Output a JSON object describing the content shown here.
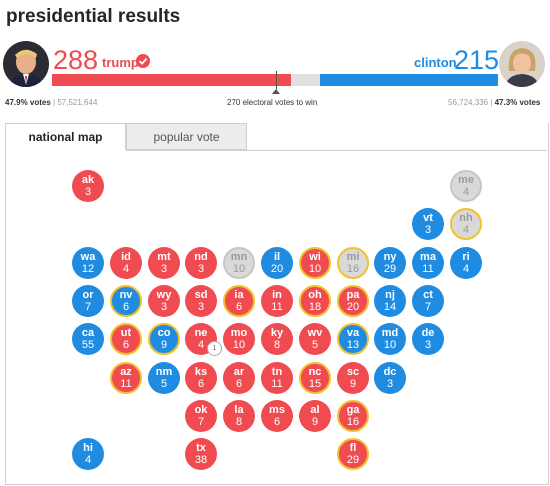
{
  "page": {
    "title": "presidential results"
  },
  "colors": {
    "republican": "#ef4b50",
    "democrat": "#1f8ce2",
    "undecided": "#d9d9d9",
    "flip_ring": "#f2c12a"
  },
  "trump": {
    "ev": "288",
    "name": "trump",
    "vote_pct": "47.9% votes",
    "votes": "57,521,644",
    "bar_fraction": 0.535
  },
  "clinton": {
    "ev": "215",
    "name": "clinton",
    "vote_pct": "47.3% votes",
    "votes": "56,724,336",
    "bar_fraction": 0.4
  },
  "threshold": {
    "label": "270 electoral votes to win"
  },
  "tabs": {
    "national": "national map",
    "popular": "popular vote"
  },
  "split_badge": "1",
  "states": [
    {
      "abbr": "ak",
      "ev": "3",
      "party": "r",
      "flip": false
    },
    {
      "abbr": "me",
      "ev": "4",
      "party": "u",
      "flip": false
    },
    {
      "abbr": "vt",
      "ev": "3",
      "party": "d",
      "flip": false
    },
    {
      "abbr": "nh",
      "ev": "4",
      "party": "u",
      "flip": true
    },
    {
      "abbr": "wa",
      "ev": "12",
      "party": "d",
      "flip": false
    },
    {
      "abbr": "id",
      "ev": "4",
      "party": "r",
      "flip": false
    },
    {
      "abbr": "mt",
      "ev": "3",
      "party": "r",
      "flip": false
    },
    {
      "abbr": "nd",
      "ev": "3",
      "party": "r",
      "flip": false
    },
    {
      "abbr": "mn",
      "ev": "10",
      "party": "u",
      "flip": false
    },
    {
      "abbr": "il",
      "ev": "20",
      "party": "d",
      "flip": false
    },
    {
      "abbr": "wi",
      "ev": "10",
      "party": "r",
      "flip": true
    },
    {
      "abbr": "mi",
      "ev": "16",
      "party": "u",
      "flip": true
    },
    {
      "abbr": "ny",
      "ev": "29",
      "party": "d",
      "flip": false
    },
    {
      "abbr": "ma",
      "ev": "11",
      "party": "d",
      "flip": false
    },
    {
      "abbr": "ri",
      "ev": "4",
      "party": "d",
      "flip": false
    },
    {
      "abbr": "or",
      "ev": "7",
      "party": "d",
      "flip": false
    },
    {
      "abbr": "nv",
      "ev": "6",
      "party": "d",
      "flip": true
    },
    {
      "abbr": "wy",
      "ev": "3",
      "party": "r",
      "flip": false
    },
    {
      "abbr": "sd",
      "ev": "3",
      "party": "r",
      "flip": false
    },
    {
      "abbr": "ia",
      "ev": "6",
      "party": "r",
      "flip": true
    },
    {
      "abbr": "in",
      "ev": "11",
      "party": "r",
      "flip": false
    },
    {
      "abbr": "oh",
      "ev": "18",
      "party": "r",
      "flip": true
    },
    {
      "abbr": "pa",
      "ev": "20",
      "party": "r",
      "flip": true
    },
    {
      "abbr": "nj",
      "ev": "14",
      "party": "d",
      "flip": false
    },
    {
      "abbr": "ct",
      "ev": "7",
      "party": "d",
      "flip": false
    },
    {
      "abbr": "ca",
      "ev": "55",
      "party": "d",
      "flip": false
    },
    {
      "abbr": "ut",
      "ev": "6",
      "party": "r",
      "flip": true
    },
    {
      "abbr": "co",
      "ev": "9",
      "party": "d",
      "flip": true
    },
    {
      "abbr": "ne",
      "ev": "4",
      "party": "r",
      "flip": false
    },
    {
      "abbr": "mo",
      "ev": "10",
      "party": "r",
      "flip": false
    },
    {
      "abbr": "ky",
      "ev": "8",
      "party": "r",
      "flip": false
    },
    {
      "abbr": "wv",
      "ev": "5",
      "party": "r",
      "flip": false
    },
    {
      "abbr": "va",
      "ev": "13",
      "party": "d",
      "flip": true
    },
    {
      "abbr": "md",
      "ev": "10",
      "party": "d",
      "flip": false
    },
    {
      "abbr": "de",
      "ev": "3",
      "party": "d",
      "flip": false
    },
    {
      "abbr": "az",
      "ev": "11",
      "party": "r",
      "flip": true
    },
    {
      "abbr": "nm",
      "ev": "5",
      "party": "d",
      "flip": false
    },
    {
      "abbr": "ks",
      "ev": "6",
      "party": "r",
      "flip": false
    },
    {
      "abbr": "ar",
      "ev": "6",
      "party": "r",
      "flip": false
    },
    {
      "abbr": "tn",
      "ev": "11",
      "party": "r",
      "flip": false
    },
    {
      "abbr": "nc",
      "ev": "15",
      "party": "r",
      "flip": true
    },
    {
      "abbr": "sc",
      "ev": "9",
      "party": "r",
      "flip": false
    },
    {
      "abbr": "dc",
      "ev": "3",
      "party": "d",
      "flip": false
    },
    {
      "abbr": "ok",
      "ev": "7",
      "party": "r",
      "flip": false
    },
    {
      "abbr": "la",
      "ev": "8",
      "party": "r",
      "flip": false
    },
    {
      "abbr": "ms",
      "ev": "6",
      "party": "r",
      "flip": false
    },
    {
      "abbr": "al",
      "ev": "9",
      "party": "r",
      "flip": false
    },
    {
      "abbr": "ga",
      "ev": "16",
      "party": "r",
      "flip": true
    },
    {
      "abbr": "hi",
      "ev": "4",
      "party": "d",
      "flip": false
    },
    {
      "abbr": "tx",
      "ev": "38",
      "party": "r",
      "flip": false
    },
    {
      "abbr": "fl",
      "ev": "29",
      "party": "r",
      "flip": true
    }
  ]
}
